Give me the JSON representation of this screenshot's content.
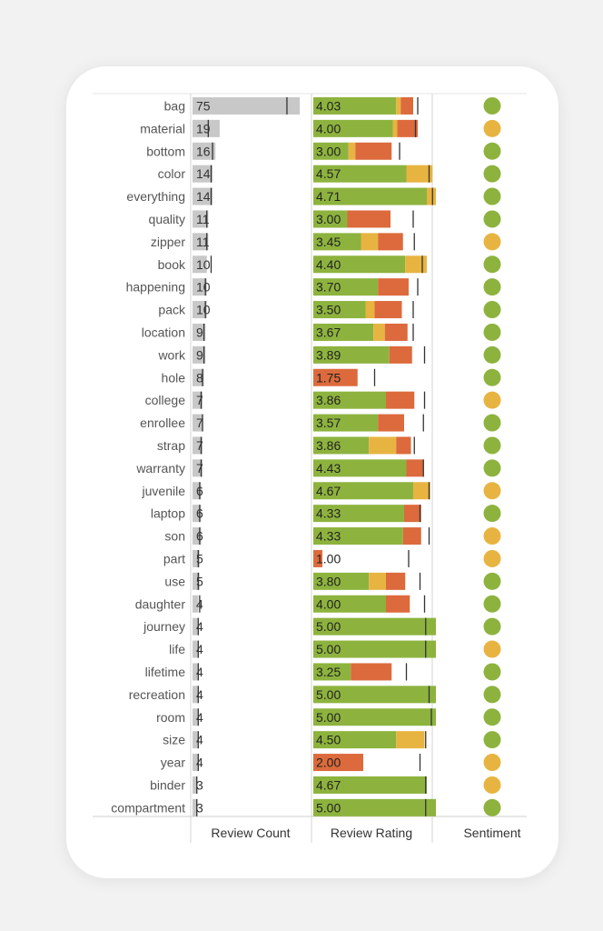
{
  "colors": {
    "count_bar": "#c8c8c8",
    "rating_good": "#8db33e",
    "rating_mid": "#e8b441",
    "rating_bad": "#dc6a3c",
    "sentiment_positive": "#8db33e",
    "sentiment_neutral": "#e8b441",
    "reference_line": "#333333"
  },
  "chart_data": {
    "type": "bar",
    "columns": [
      "Review Count",
      "Review Rating",
      "Sentiment"
    ],
    "count_range": [
      0,
      80
    ],
    "rating_range": [
      0,
      5
    ],
    "rows": [
      {
        "keyword": "bag",
        "count": 75,
        "rating": "4.03",
        "segments": [
          3.65,
          0.2,
          0.55
        ],
        "ref_count": 66,
        "ref_rating": 4.6,
        "sentiment": "positive"
      },
      {
        "keyword": "material",
        "count": 19,
        "rating": "4.00",
        "segments": [
          3.5,
          0.2,
          0.9
        ],
        "ref_count": 11,
        "ref_rating": 4.5,
        "sentiment": "neutral"
      },
      {
        "keyword": "bottom",
        "count": 16,
        "rating": "3.00",
        "segments": [
          1.55,
          0.3,
          1.6
        ],
        "ref_count": 14,
        "ref_rating": 3.8,
        "sentiment": "positive"
      },
      {
        "keyword": "color",
        "count": 14,
        "rating": "4.57",
        "segments": [
          4.1,
          1.15,
          0
        ],
        "ref_count": 13,
        "ref_rating": 5.1,
        "sentiment": "positive"
      },
      {
        "keyword": "everything",
        "count": 14,
        "rating": "4.71",
        "segments": [
          5.0,
          0.4,
          0
        ],
        "ref_count": 13,
        "ref_rating": 5.25,
        "sentiment": "positive"
      },
      {
        "keyword": "quality",
        "count": 11,
        "rating": "3.00",
        "segments": [
          1.5,
          0,
          1.9
        ],
        "ref_count": 10,
        "ref_rating": 4.4,
        "sentiment": "positive"
      },
      {
        "keyword": "zipper",
        "count": 11,
        "rating": "3.45",
        "segments": [
          2.1,
          0.75,
          1.1
        ],
        "ref_count": 10,
        "ref_rating": 4.45,
        "sentiment": "neutral"
      },
      {
        "keyword": "book",
        "count": 10,
        "rating": "4.40",
        "segments": [
          4.05,
          0.95,
          0
        ],
        "ref_count": 13,
        "ref_rating": 4.8,
        "sentiment": "positive"
      },
      {
        "keyword": "happening",
        "count": 10,
        "rating": "3.70",
        "segments": [
          2.85,
          0,
          1.35
        ],
        "ref_count": 9,
        "ref_rating": 4.6,
        "sentiment": "positive"
      },
      {
        "keyword": "pack",
        "count": 10,
        "rating": "3.50",
        "segments": [
          2.3,
          0.4,
          1.2
        ],
        "ref_count": 9,
        "ref_rating": 4.4,
        "sentiment": "positive"
      },
      {
        "keyword": "location",
        "count": 9,
        "rating": "3.67",
        "segments": [
          2.65,
          0.5,
          1.0
        ],
        "ref_count": 8,
        "ref_rating": 4.4,
        "sentiment": "positive"
      },
      {
        "keyword": "work",
        "count": 9,
        "rating": "3.89",
        "segments": [
          3.35,
          0,
          1.0
        ],
        "ref_count": 8,
        "ref_rating": 4.9,
        "sentiment": "positive"
      },
      {
        "keyword": "hole",
        "count": 8,
        "rating": "1.75",
        "segments": [
          0,
          0,
          1.95
        ],
        "ref_count": 7,
        "ref_rating": 2.7,
        "sentiment": "positive"
      },
      {
        "keyword": "college",
        "count": 7,
        "rating": "3.86",
        "segments": [
          3.2,
          0,
          1.25
        ],
        "ref_count": 6,
        "ref_rating": 4.9,
        "sentiment": "neutral"
      },
      {
        "keyword": "enrollee",
        "count": 7,
        "rating": "3.57",
        "segments": [
          2.85,
          0,
          1.15
        ],
        "ref_count": 7,
        "ref_rating": 4.85,
        "sentiment": "positive"
      },
      {
        "keyword": "strap",
        "count": 7,
        "rating": "3.86",
        "segments": [
          2.45,
          1.2,
          0.65
        ],
        "ref_count": 6,
        "ref_rating": 4.45,
        "sentiment": "positive"
      },
      {
        "keyword": "warranty",
        "count": 7,
        "rating": "4.43",
        "segments": [
          4.1,
          0,
          0.75
        ],
        "ref_count": 6,
        "ref_rating": 4.85,
        "sentiment": "positive"
      },
      {
        "keyword": "juvenile",
        "count": 6,
        "rating": "4.67",
        "segments": [
          4.4,
          0.75,
          0
        ],
        "ref_count": 5,
        "ref_rating": 5.1,
        "sentiment": "neutral"
      },
      {
        "keyword": "laptop",
        "count": 6,
        "rating": "4.33",
        "segments": [
          4.0,
          0,
          0.75
        ],
        "ref_count": 5,
        "ref_rating": 4.7,
        "sentiment": "positive"
      },
      {
        "keyword": "son",
        "count": 6,
        "rating": "4.33",
        "segments": [
          3.95,
          0,
          0.8
        ],
        "ref_count": 5,
        "ref_rating": 5.1,
        "sentiment": "neutral"
      },
      {
        "keyword": "part",
        "count": 5,
        "rating": "1.00",
        "segments": [
          0,
          0,
          0.4
        ],
        "ref_count": 4,
        "ref_rating": 4.2,
        "sentiment": "neutral"
      },
      {
        "keyword": "use",
        "count": 5,
        "rating": "3.80",
        "segments": [
          2.45,
          0.75,
          0.85
        ],
        "ref_count": 4,
        "ref_rating": 4.7,
        "sentiment": "positive"
      },
      {
        "keyword": "daughter",
        "count": 4,
        "rating": "4.00",
        "segments": [
          3.2,
          0,
          1.05
        ],
        "ref_count": 5,
        "ref_rating": 4.9,
        "sentiment": "positive"
      },
      {
        "keyword": "journey",
        "count": 4,
        "rating": "5.00",
        "segments": [
          5.4,
          0,
          0
        ],
        "ref_count": 4,
        "ref_rating": 4.95,
        "sentiment": "positive"
      },
      {
        "keyword": "life",
        "count": 4,
        "rating": "5.00",
        "segments": [
          5.4,
          0,
          0
        ],
        "ref_count": 4,
        "ref_rating": 4.95,
        "sentiment": "neutral"
      },
      {
        "keyword": "lifetime",
        "count": 4,
        "rating": "3.25",
        "segments": [
          1.65,
          0,
          1.8
        ],
        "ref_count": 4,
        "ref_rating": 4.1,
        "sentiment": "positive"
      },
      {
        "keyword": "recreation",
        "count": 4,
        "rating": "5.00",
        "segments": [
          5.4,
          0,
          0
        ],
        "ref_count": 4,
        "ref_rating": 5.1,
        "sentiment": "positive"
      },
      {
        "keyword": "room",
        "count": 4,
        "rating": "5.00",
        "segments": [
          5.4,
          0,
          0
        ],
        "ref_count": 4,
        "ref_rating": 5.2,
        "sentiment": "positive"
      },
      {
        "keyword": "size",
        "count": 4,
        "rating": "4.50",
        "segments": [
          3.65,
          1.25,
          0
        ],
        "ref_count": 4,
        "ref_rating": 4.95,
        "sentiment": "positive"
      },
      {
        "keyword": "year",
        "count": 4,
        "rating": "2.00",
        "segments": [
          0,
          0,
          2.2
        ],
        "ref_count": 4,
        "ref_rating": 4.7,
        "sentiment": "neutral"
      },
      {
        "keyword": "binder",
        "count": 3,
        "rating": "4.67",
        "segments": [
          5.0,
          0,
          0
        ],
        "ref_count": 3,
        "ref_rating": 4.95,
        "sentiment": "neutral"
      },
      {
        "keyword": "compartment",
        "count": 3,
        "rating": "5.00",
        "segments": [
          5.4,
          0,
          0
        ],
        "ref_count": 3,
        "ref_rating": 4.95,
        "sentiment": "positive"
      }
    ]
  }
}
